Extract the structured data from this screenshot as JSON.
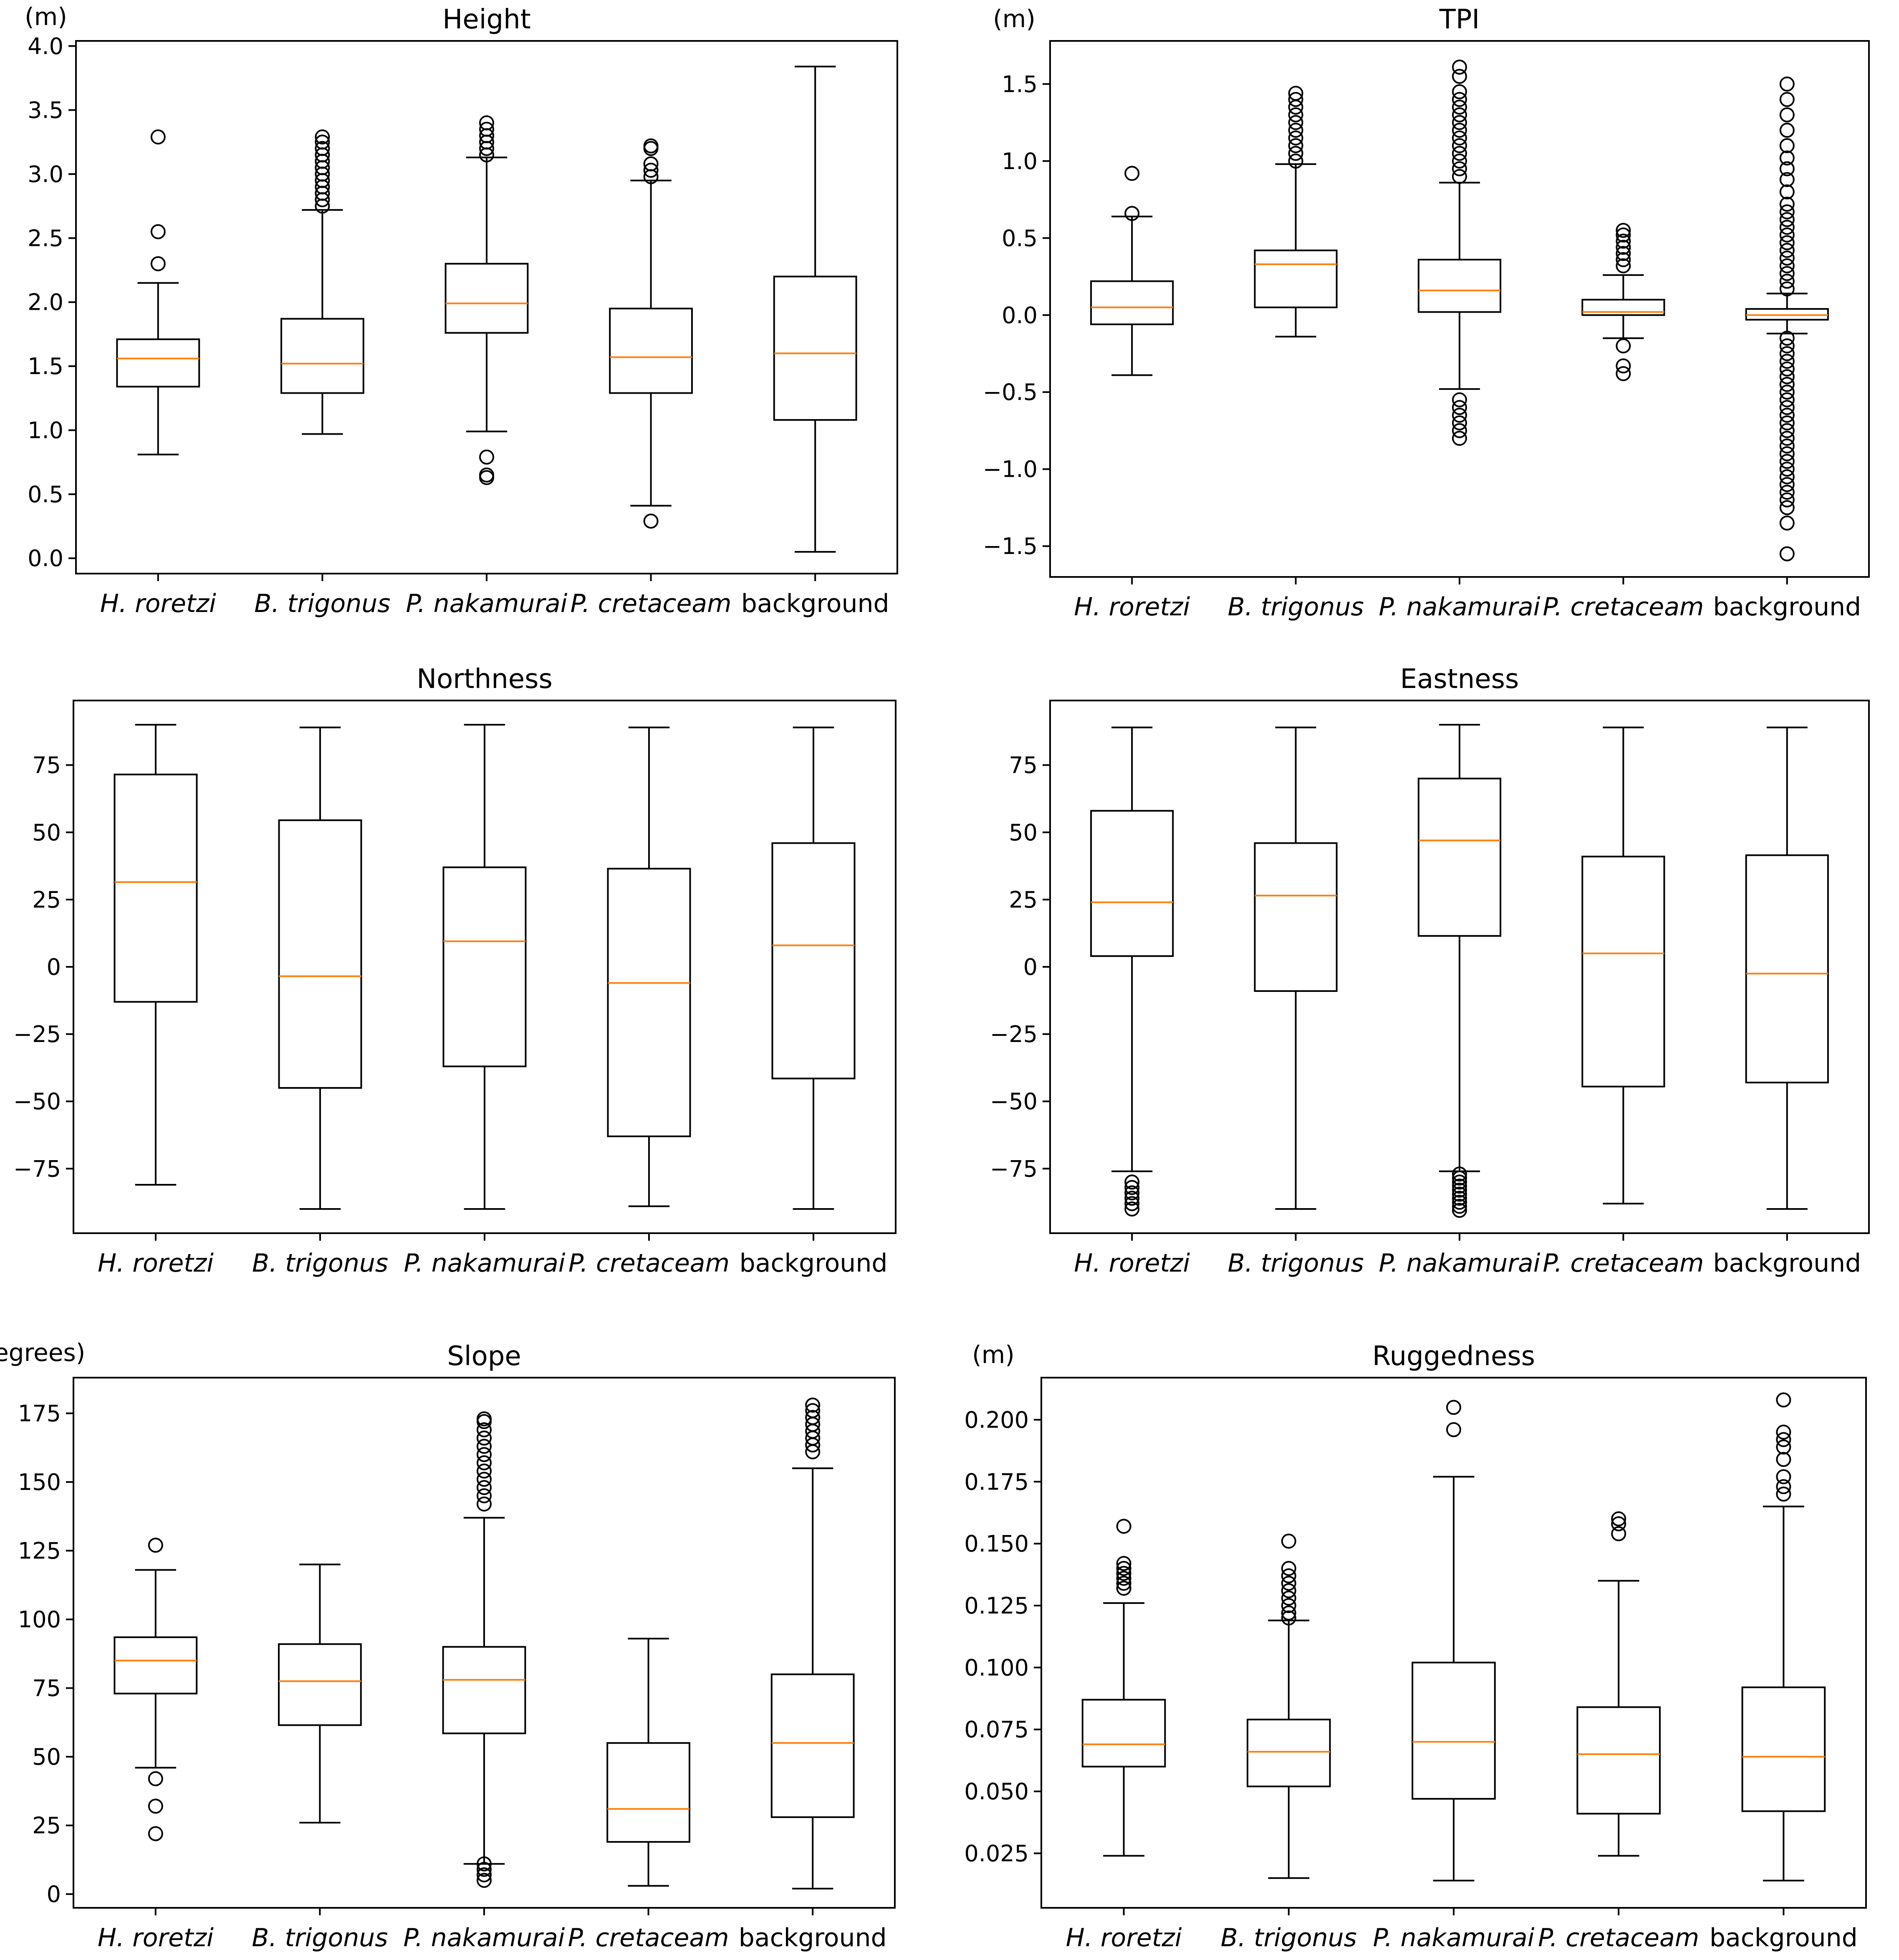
{
  "figure": {
    "background": "#ffffff",
    "median_color": "#ff7f0e",
    "box_color": "#000000"
  },
  "chart_data": [
    {
      "type": "box",
      "title": "Height",
      "ylabel": "(m)",
      "categories": [
        "H. roretzi",
        "B. trigonus",
        "P. nakamurai",
        "P. cretaceam",
        "background"
      ],
      "italic": [
        true,
        true,
        true,
        true,
        false
      ],
      "ylim": [
        -0.12,
        4.04
      ],
      "yticks": [
        0.0,
        0.5,
        1.0,
        1.5,
        2.0,
        2.5,
        3.0,
        3.5,
        4.0
      ],
      "ytick_labels": [
        "0.0",
        "0.5",
        "1.0",
        "1.5",
        "2.0",
        "2.5",
        "3.0",
        "3.5",
        "4.0"
      ],
      "boxes": [
        {
          "whislo": 0.81,
          "q1": 1.34,
          "med": 1.56,
          "q3": 1.71,
          "whishi": 2.15,
          "fliers": [
            2.3,
            2.55,
            3.29
          ]
        },
        {
          "whislo": 0.97,
          "q1": 1.29,
          "med": 1.52,
          "q3": 1.87,
          "whishi": 2.72,
          "fliers": [
            2.75,
            2.8,
            2.85,
            2.9,
            2.95,
            3.0,
            3.05,
            3.1,
            3.15,
            3.2,
            3.25,
            3.29
          ]
        },
        {
          "whislo": 0.99,
          "q1": 1.76,
          "med": 1.99,
          "q3": 2.3,
          "whishi": 3.13,
          "fliers": [
            0.63,
            0.65,
            0.79,
            3.15,
            3.2,
            3.25,
            3.3,
            3.35,
            3.4
          ]
        },
        {
          "whislo": 0.41,
          "q1": 1.29,
          "med": 1.57,
          "q3": 1.95,
          "whishi": 2.95,
          "fliers": [
            0.29,
            2.98,
            3.03,
            3.08,
            3.2,
            3.22
          ]
        },
        {
          "whislo": 0.05,
          "q1": 1.08,
          "med": 1.6,
          "q3": 2.2,
          "whishi": 3.84,
          "fliers": []
        }
      ]
    },
    {
      "type": "box",
      "title": "TPI",
      "ylabel": "(m)",
      "categories": [
        "H. roretzi",
        "B. trigonus",
        "P. nakamurai",
        "P. cretaceam",
        "background"
      ],
      "italic": [
        true,
        true,
        true,
        true,
        false
      ],
      "ylim": [
        -1.7,
        1.78
      ],
      "yticks": [
        -1.5,
        -1.0,
        -0.5,
        0.0,
        0.5,
        1.0,
        1.5
      ],
      "ytick_labels": [
        "−1.5",
        "−1.0",
        "−0.5",
        "0.0",
        "0.5",
        "1.0",
        "1.5"
      ],
      "boxes": [
        {
          "whislo": -0.39,
          "q1": -0.06,
          "med": 0.05,
          "q3": 0.22,
          "whishi": 0.64,
          "fliers": [
            0.66,
            0.92
          ]
        },
        {
          "whislo": -0.14,
          "q1": 0.05,
          "med": 0.33,
          "q3": 0.42,
          "whishi": 0.98,
          "fliers": [
            1.0,
            1.05,
            1.1,
            1.15,
            1.2,
            1.25,
            1.3,
            1.35,
            1.4,
            1.44
          ]
        },
        {
          "whislo": -0.48,
          "q1": 0.02,
          "med": 0.16,
          "q3": 0.36,
          "whishi": 0.86,
          "fliers": [
            -0.8,
            -0.75,
            -0.7,
            -0.65,
            -0.6,
            -0.55,
            0.9,
            0.95,
            1.0,
            1.05,
            1.1,
            1.15,
            1.2,
            1.25,
            1.3,
            1.35,
            1.4,
            1.45,
            1.55,
            1.61
          ]
        },
        {
          "whislo": -0.15,
          "q1": 0.0,
          "med": 0.02,
          "q3": 0.1,
          "whishi": 0.26,
          "fliers": [
            -0.38,
            -0.33,
            -0.2,
            0.32,
            0.36,
            0.4,
            0.44,
            0.48,
            0.52,
            0.55
          ]
        },
        {
          "whislo": -0.12,
          "q1": -0.03,
          "med": 0.0,
          "q3": 0.04,
          "whishi": 0.14,
          "fliers": [
            -1.55,
            -1.35,
            -1.25,
            -1.2,
            -1.15,
            -1.1,
            -1.05,
            -1.0,
            -0.95,
            -0.9,
            -0.85,
            -0.8,
            -0.75,
            -0.7,
            -0.65,
            -0.6,
            -0.55,
            -0.5,
            -0.45,
            -0.4,
            -0.35,
            -0.3,
            -0.25,
            -0.2,
            -0.15,
            0.17,
            0.22,
            0.27,
            0.32,
            0.37,
            0.42,
            0.47,
            0.52,
            0.57,
            0.62,
            0.67,
            0.72,
            0.8,
            0.88,
            0.95,
            1.02,
            1.1,
            1.2,
            1.3,
            1.4,
            1.5
          ]
        }
      ]
    },
    {
      "type": "box",
      "title": "Northness",
      "ylabel": "",
      "categories": [
        "H. roretzi",
        "B. trigonus",
        "P. nakamurai",
        "P. cretaceam",
        "background"
      ],
      "italic": [
        true,
        true,
        true,
        true,
        false
      ],
      "ylim": [
        -99,
        99
      ],
      "yticks": [
        -75,
        -50,
        -25,
        0,
        25,
        50,
        75
      ],
      "ytick_labels": [
        "−75",
        "−50",
        "−25",
        "0",
        "25",
        "50",
        "75"
      ],
      "boxes": [
        {
          "whislo": -81,
          "q1": -13,
          "med": 31.5,
          "q3": 71.5,
          "whishi": 90,
          "fliers": []
        },
        {
          "whislo": -90,
          "q1": -45,
          "med": -3.5,
          "q3": 54.5,
          "whishi": 89,
          "fliers": []
        },
        {
          "whislo": -90,
          "q1": -37,
          "med": 9.5,
          "q3": 37,
          "whishi": 90,
          "fliers": []
        },
        {
          "whislo": -89,
          "q1": -63,
          "med": -6,
          "q3": 36.5,
          "whishi": 89,
          "fliers": []
        },
        {
          "whislo": -90,
          "q1": -41.5,
          "med": 8,
          "q3": 46,
          "whishi": 89,
          "fliers": []
        }
      ]
    },
    {
      "type": "box",
      "title": "Eastness",
      "ylabel": "",
      "categories": [
        "H. roretzi",
        "B. trigonus",
        "P. nakamurai",
        "P. cretaceam",
        "background"
      ],
      "italic": [
        true,
        true,
        true,
        true,
        false
      ],
      "ylim": [
        -99,
        99
      ],
      "yticks": [
        -75,
        -50,
        -25,
        0,
        25,
        50,
        75
      ],
      "ytick_labels": [
        "−75",
        "−50",
        "−25",
        "0",
        "25",
        "50",
        "75"
      ],
      "boxes": [
        {
          "whislo": -76,
          "q1": 4,
          "med": 24,
          "q3": 58,
          "whishi": 89,
          "fliers": [
            -80,
            -82,
            -84,
            -86,
            -88,
            -90
          ]
        },
        {
          "whislo": -90,
          "q1": -9,
          "med": 26.5,
          "q3": 46,
          "whishi": 89,
          "fliers": []
        },
        {
          "whislo": -76,
          "q1": 11.5,
          "med": 47,
          "q3": 70,
          "whishi": 90,
          "fliers": [
            -77,
            -78.5,
            -80,
            -81.5,
            -83,
            -84.5,
            -86,
            -87.5,
            -89,
            -90.5
          ]
        },
        {
          "whislo": -88,
          "q1": -44.5,
          "med": 5,
          "q3": 41,
          "whishi": 89,
          "fliers": []
        },
        {
          "whislo": -90,
          "q1": -43,
          "med": -2.5,
          "q3": 41.5,
          "whishi": 89,
          "fliers": []
        }
      ]
    },
    {
      "type": "box",
      "title": "Slope",
      "ylabel": "(degrees)",
      "categories": [
        "H. roretzi",
        "B. trigonus",
        "P. nakamurai",
        "P. cretaceam",
        "background"
      ],
      "italic": [
        true,
        true,
        true,
        true,
        false
      ],
      "ylim": [
        -5,
        188
      ],
      "yticks": [
        0,
        25,
        50,
        75,
        100,
        125,
        150,
        175
      ],
      "ytick_labels": [
        "0",
        "25",
        "50",
        "75",
        "100",
        "125",
        "150",
        "175"
      ],
      "boxes": [
        {
          "whislo": 46,
          "q1": 73,
          "med": 85,
          "q3": 93.5,
          "whishi": 118,
          "fliers": [
            22,
            32,
            42,
            127
          ]
        },
        {
          "whislo": 26,
          "q1": 61.5,
          "med": 77.5,
          "q3": 91,
          "whishi": 120,
          "fliers": []
        },
        {
          "whislo": 11,
          "q1": 58.5,
          "med": 78,
          "q3": 90,
          "whishi": 137,
          "fliers": [
            5,
            7,
            9,
            11,
            142,
            145,
            148,
            151,
            154,
            157,
            160,
            163,
            166,
            169,
            172,
            173
          ]
        },
        {
          "whislo": 3,
          "q1": 19,
          "med": 31,
          "q3": 55,
          "whishi": 93,
          "fliers": []
        },
        {
          "whislo": 2,
          "q1": 28,
          "med": 55,
          "q3": 80,
          "whishi": 155,
          "fliers": [
            161,
            163.5,
            166,
            168.5,
            171,
            173.5,
            176,
            178
          ]
        }
      ]
    },
    {
      "type": "box",
      "title": "Ruggedness",
      "ylabel": "(m)",
      "categories": [
        "H. roretzi",
        "B. trigonus",
        "P. nakamurai",
        "P. cretaceam",
        "background"
      ],
      "italic": [
        true,
        true,
        true,
        true,
        false
      ],
      "ylim": [
        0.003,
        0.217
      ],
      "yticks": [
        0.025,
        0.05,
        0.075,
        0.1,
        0.125,
        0.15,
        0.175,
        0.2
      ],
      "ytick_labels": [
        "0.025",
        "0.050",
        "0.075",
        "0.100",
        "0.125",
        "0.150",
        "0.175",
        "0.200"
      ],
      "boxes": [
        {
          "whislo": 0.024,
          "q1": 0.06,
          "med": 0.069,
          "q3": 0.087,
          "whishi": 0.126,
          "fliers": [
            0.132,
            0.134,
            0.136,
            0.138,
            0.14,
            0.142,
            0.157
          ]
        },
        {
          "whislo": 0.015,
          "q1": 0.052,
          "med": 0.066,
          "q3": 0.079,
          "whishi": 0.119,
          "fliers": [
            0.12,
            0.122,
            0.125,
            0.128,
            0.131,
            0.134,
            0.137,
            0.14,
            0.151
          ]
        },
        {
          "whislo": 0.014,
          "q1": 0.047,
          "med": 0.07,
          "q3": 0.102,
          "whishi": 0.177,
          "fliers": [
            0.196,
            0.205
          ]
        },
        {
          "whislo": 0.024,
          "q1": 0.041,
          "med": 0.065,
          "q3": 0.084,
          "whishi": 0.135,
          "fliers": [
            0.154,
            0.158,
            0.16
          ]
        },
        {
          "whislo": 0.014,
          "q1": 0.042,
          "med": 0.064,
          "q3": 0.092,
          "whishi": 0.165,
          "fliers": [
            0.17,
            0.173,
            0.177,
            0.184,
            0.189,
            0.192,
            0.195,
            0.208
          ]
        }
      ]
    }
  ]
}
